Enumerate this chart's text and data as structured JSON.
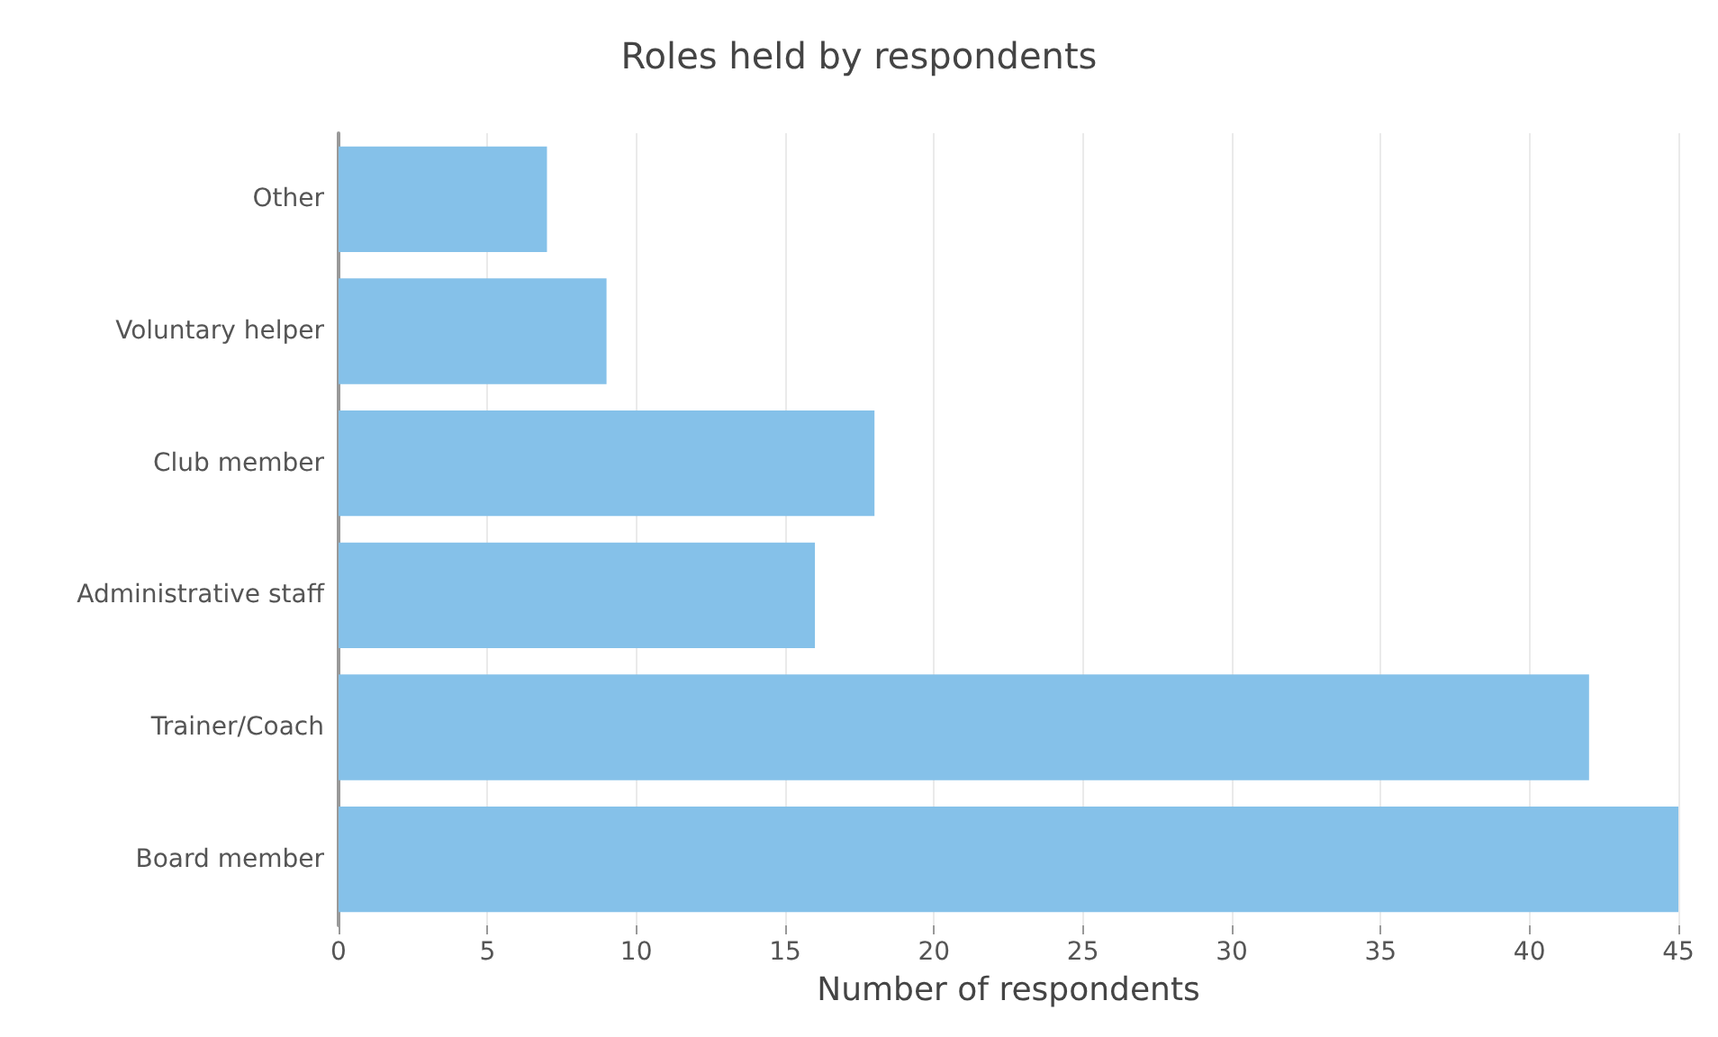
{
  "chart_data": {
    "type": "bar",
    "orientation": "horizontal",
    "title": "Roles held by respondents",
    "xlabel": "Number of respondents",
    "categories": [
      "Other",
      "Voluntary helper",
      "Club member",
      "Administrative staff",
      "Trainer/Coach",
      "Board member"
    ],
    "values": [
      7,
      9,
      18,
      16,
      42,
      45
    ],
    "color": "#85c1e9",
    "xlim": [
      0,
      45
    ],
    "xticks": [
      0,
      5,
      10,
      15,
      20,
      25,
      30,
      35,
      40,
      45
    ],
    "grid": "x"
  }
}
